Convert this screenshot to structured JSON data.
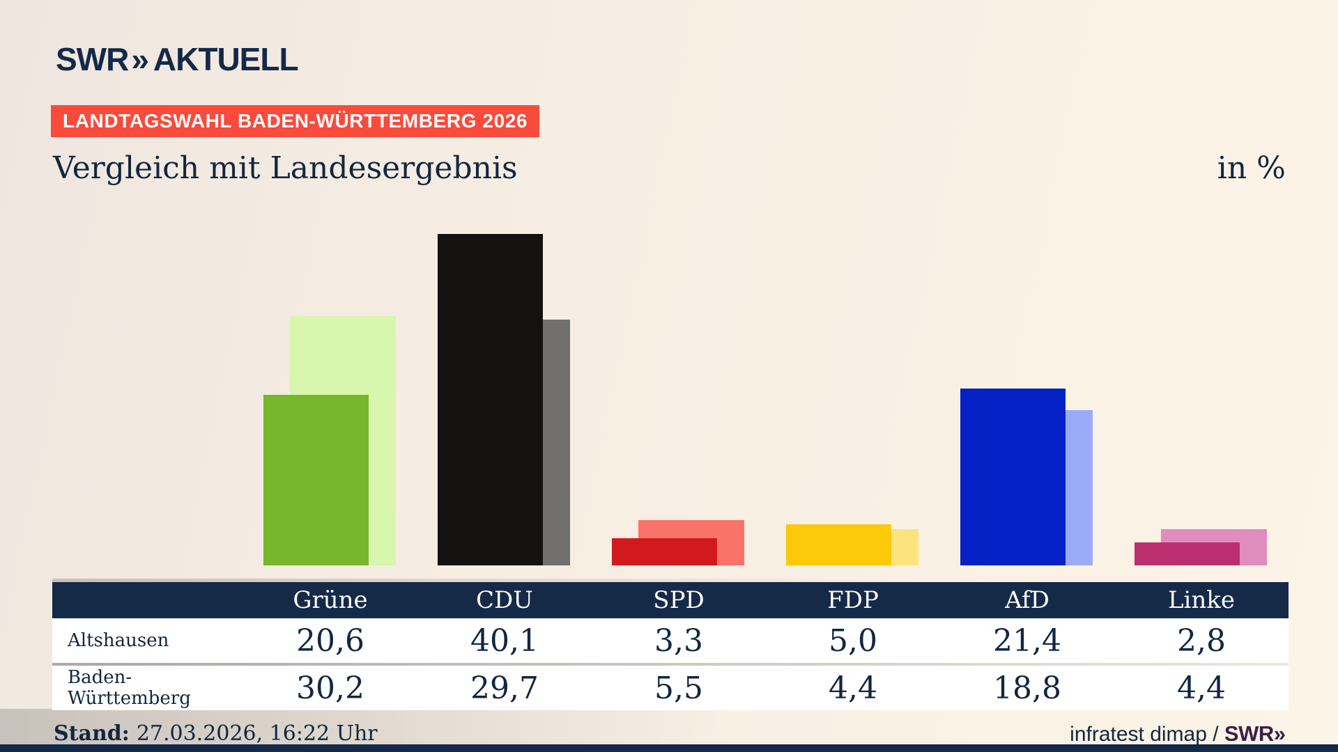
{
  "brand": {
    "name": "SWR",
    "chevron": "»",
    "suffix": "AKTUELL"
  },
  "banner": {
    "label": "LANDTAGSWAHL BADEN-WÜRTTEMBERG 2026"
  },
  "headline": {
    "title": "Vergleich mit Landesergebnis",
    "unit": "in %"
  },
  "chart_data": {
    "type": "bar",
    "title": "Vergleich mit Landesergebnis",
    "unit": "%",
    "categories": [
      "Grüne",
      "CDU",
      "SPD",
      "FDP",
      "AfD",
      "Linke"
    ],
    "series": [
      {
        "name": "Altshausen",
        "values": [
          20.6,
          40.1,
          3.3,
          5.0,
          21.4,
          2.8
        ],
        "colors": [
          "#77b72b",
          "#141210",
          "#d2191d",
          "#fcca0a",
          "#0621c6",
          "#bb2f71"
        ]
      },
      {
        "name": "Baden-Württemberg",
        "values": [
          30.2,
          29.7,
          5.5,
          4.4,
          18.8,
          4.4
        ],
        "colors": [
          "#d9f6ae",
          "#72706e",
          "#fa736b",
          "#fde37d",
          "#9cabf8",
          "#e08cbc"
        ]
      }
    ],
    "ylim": [
      0,
      42
    ],
    "grid": false,
    "legend_position": "table-below",
    "decimal_separator": ","
  },
  "footer": {
    "stand_label": "Stand:",
    "stand_value": "27.03.2026, 16:22 Uhr",
    "source": "infratest dimap / ",
    "source_brand": "SWR",
    "source_chevron": "»"
  },
  "colors": {
    "background": "#f7efe2",
    "navy": "#14294a",
    "banner_red": "#f84b3c",
    "table_header": "#152a47",
    "footer_brand": "#3b1f47",
    "text": "#12263f"
  }
}
